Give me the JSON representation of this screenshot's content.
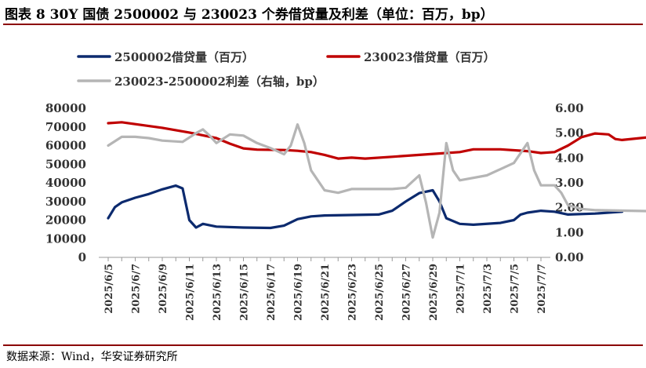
{
  "title": "图表 8 30Y 国债 2500002 与 230023 个券借贷量及利差（单位：百万，bp）",
  "source": "数据来源：Wind，华安证券研究所",
  "colors": {
    "navy": "#0c2a6e",
    "red": "#c00000",
    "gray": "#b5b5b5",
    "rule": "#8b0000"
  },
  "chart_data": {
    "type": "line",
    "x_tick_labels": [
      "2025/6/5",
      "2025/6/7",
      "2025/6/9",
      "2025/6/11",
      "2025/6/13",
      "2025/6/15",
      "2025/6/17",
      "2025/6/19",
      "2025/6/21",
      "2025/6/23",
      "2025/6/25",
      "2025/6/27",
      "2025/6/29",
      "2025/7/1",
      "2025/7/3",
      "2025/7/5",
      "2025/7/7"
    ],
    "y_left": {
      "min": 0,
      "max": 80000,
      "step": 10000,
      "tick_labels": [
        "0",
        "10000",
        "20000",
        "30000",
        "40000",
        "50000",
        "60000",
        "70000",
        "80000"
      ]
    },
    "y_right": {
      "min": 0,
      "max": 6,
      "step": 1,
      "tick_labels": [
        "0.00",
        "1.00",
        "2.00",
        "3.00",
        "4.00",
        "5.00",
        "6.00"
      ]
    },
    "legend": [
      "2500002借贷量（百万）",
      "230023借贷量（百万）",
      "230023-2500002利差（右轴，bp）"
    ],
    "series": [
      {
        "name": "2500002借贷量（百万）",
        "axis": "left",
        "color": "#0c2a6e",
        "points": [
          [
            0,
            21000
          ],
          [
            0.5,
            27000
          ],
          [
            1,
            29500
          ],
          [
            2,
            32000
          ],
          [
            3,
            34000
          ],
          [
            4,
            36500
          ],
          [
            5,
            38500
          ],
          [
            5.5,
            37000
          ],
          [
            6,
            20000
          ],
          [
            6.5,
            16000
          ],
          [
            7,
            18000
          ],
          [
            8,
            16500
          ],
          [
            10,
            16000
          ],
          [
            12,
            15800
          ],
          [
            13,
            17000
          ],
          [
            14,
            20500
          ],
          [
            15,
            22000
          ],
          [
            16,
            22500
          ],
          [
            20,
            23000
          ],
          [
            21,
            25000
          ],
          [
            22,
            30000
          ],
          [
            23,
            34500
          ],
          [
            24,
            36000
          ],
          [
            24.5,
            30000
          ],
          [
            25,
            21000
          ],
          [
            26,
            18000
          ],
          [
            27,
            17500
          ],
          [
            29,
            18500
          ],
          [
            30,
            20000
          ],
          [
            30.5,
            23000
          ],
          [
            31,
            24000
          ],
          [
            32,
            25000
          ],
          [
            33,
            24500
          ],
          [
            34,
            23000
          ],
          [
            36,
            23500
          ],
          [
            38,
            24500
          ]
        ]
      },
      {
        "name": "230023借贷量（百万）",
        "axis": "left",
        "color": "#c00000",
        "points": [
          [
            0,
            72000
          ],
          [
            1,
            72500
          ],
          [
            2,
            71500
          ],
          [
            4,
            69500
          ],
          [
            6,
            67000
          ],
          [
            8,
            64000
          ],
          [
            9,
            61000
          ],
          [
            10,
            58500
          ],
          [
            11,
            57800
          ],
          [
            13,
            57600
          ],
          [
            14,
            57200
          ],
          [
            15,
            56500
          ],
          [
            16,
            55000
          ],
          [
            17,
            53000
          ],
          [
            18,
            53500
          ],
          [
            19,
            53000
          ],
          [
            21,
            54000
          ],
          [
            23,
            55000
          ],
          [
            25,
            56000
          ],
          [
            26,
            56500
          ],
          [
            27,
            58000
          ],
          [
            29,
            58000
          ],
          [
            31,
            57000
          ],
          [
            32,
            56000
          ],
          [
            33,
            56500
          ],
          [
            34,
            60000
          ],
          [
            35,
            64500
          ],
          [
            36,
            66500
          ],
          [
            37,
            66000
          ],
          [
            37.5,
            63500
          ],
          [
            38,
            63000
          ],
          [
            40,
            64500
          ],
          [
            41,
            66000
          ]
        ]
      },
      {
        "name": "230023-2500002利差（右轴，bp）",
        "axis": "right",
        "color": "#b5b5b5",
        "points": [
          [
            0,
            4.5
          ],
          [
            1,
            4.85
          ],
          [
            2,
            4.85
          ],
          [
            3,
            4.8
          ],
          [
            4,
            4.7
          ],
          [
            5.5,
            4.65
          ],
          [
            6.5,
            5.0
          ],
          [
            7,
            5.15
          ],
          [
            7.5,
            4.9
          ],
          [
            8,
            4.6
          ],
          [
            9,
            4.95
          ],
          [
            10,
            4.9
          ],
          [
            11,
            4.6
          ],
          [
            12,
            4.4
          ],
          [
            13,
            4.15
          ],
          [
            13.5,
            4.5
          ],
          [
            14,
            5.35
          ],
          [
            14.5,
            4.6
          ],
          [
            15,
            3.5
          ],
          [
            16,
            2.7
          ],
          [
            17,
            2.6
          ],
          [
            18,
            2.75
          ],
          [
            21,
            2.75
          ],
          [
            22,
            2.8
          ],
          [
            23,
            3.3
          ],
          [
            23.5,
            2.2
          ],
          [
            24,
            0.8
          ],
          [
            24.5,
            1.8
          ],
          [
            25,
            4.6
          ],
          [
            25.5,
            3.5
          ],
          [
            26,
            3.1
          ],
          [
            28,
            3.3
          ],
          [
            30,
            3.8
          ],
          [
            31,
            4.6
          ],
          [
            31.5,
            3.5
          ],
          [
            32,
            2.9
          ],
          [
            33,
            2.9
          ],
          [
            33.5,
            2.6
          ],
          [
            34,
            2.1
          ],
          [
            35,
            1.95
          ],
          [
            36,
            1.9
          ],
          [
            41,
            1.85
          ]
        ]
      }
    ],
    "x_count": 33
  }
}
